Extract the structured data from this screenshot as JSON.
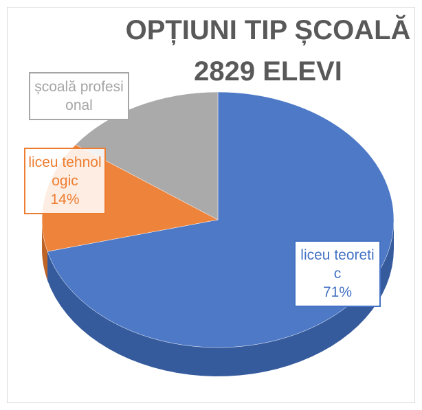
{
  "chart_data": {
    "type": "pie",
    "title": "OPȚIUNI TIP ȘCOALĂ",
    "subtitle": "2829 ELEVI",
    "categories": [
      "liceu teoretic",
      "liceu tehnologic",
      "școală profesional"
    ],
    "values": [
      71,
      14,
      15
    ],
    "value_labels": [
      "71%",
      "14%",
      null
    ],
    "colors": [
      "#4472c4",
      "#ed7d31",
      "#a5a5a5"
    ]
  }
}
